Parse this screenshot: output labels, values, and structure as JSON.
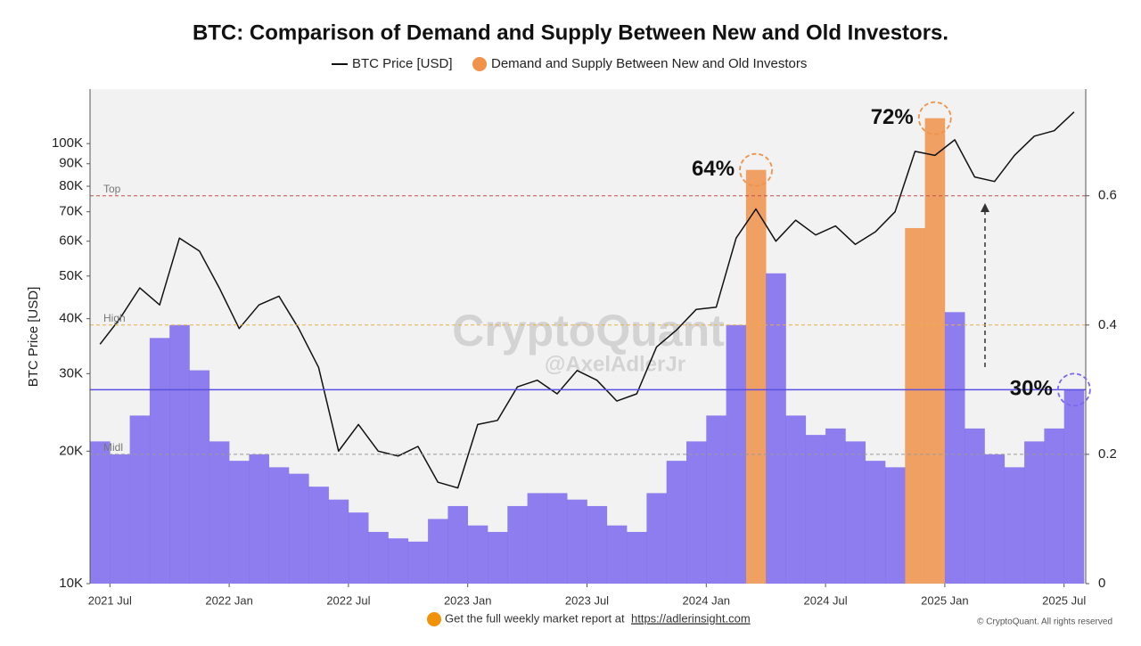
{
  "chart_data": {
    "type": "combo",
    "title": "BTC: Comparison of Demand and Supply Between New and Old Investors.",
    "ylabel": "BTC Price [USD]",
    "log_y": true,
    "x": [
      "2021-06",
      "2021-07",
      "2021-08",
      "2021-09",
      "2021-10",
      "2021-11",
      "2021-12",
      "2022-01",
      "2022-02",
      "2022-03",
      "2022-04",
      "2022-05",
      "2022-06",
      "2022-07",
      "2022-08",
      "2022-09",
      "2022-10",
      "2022-11",
      "2022-12",
      "2023-01",
      "2023-02",
      "2023-03",
      "2023-04",
      "2023-05",
      "2023-06",
      "2023-07",
      "2023-08",
      "2023-09",
      "2023-10",
      "2023-11",
      "2023-12",
      "2024-01",
      "2024-02",
      "2024-03",
      "2024-04",
      "2024-05",
      "2024-06",
      "2024-07",
      "2024-08",
      "2024-09",
      "2024-10",
      "2024-11",
      "2024-12",
      "2025-01",
      "2025-02",
      "2025-03",
      "2025-04",
      "2025-05",
      "2025-06",
      "2025-07"
    ],
    "series": [
      {
        "name": "BTC Price [USD]",
        "type": "line",
        "color": "#111111",
        "values": [
          35000,
          40000,
          47000,
          43000,
          61000,
          57000,
          47000,
          38000,
          43000,
          45000,
          38000,
          31000,
          20000,
          23000,
          20000,
          19500,
          20500,
          17000,
          16500,
          23000,
          23500,
          28000,
          29000,
          27000,
          30500,
          29000,
          26000,
          27000,
          34500,
          37700,
          42000,
          42500,
          61000,
          71000,
          60000,
          67000,
          62000,
          65000,
          59000,
          63000,
          70000,
          96000,
          94000,
          102000,
          84000,
          82000,
          94000,
          104000,
          107000,
          118000
        ]
      },
      {
        "name": "Demand and Supply Between New and Old Investors",
        "type": "bar",
        "axis": "y2",
        "color": "#f0924a",
        "values": [
          0.22,
          0.2,
          0.26,
          0.38,
          0.4,
          0.33,
          0.22,
          0.19,
          0.2,
          0.18,
          0.17,
          0.15,
          0.13,
          0.11,
          0.08,
          0.07,
          0.065,
          0.1,
          0.12,
          0.09,
          0.08,
          0.12,
          0.14,
          0.14,
          0.13,
          0.12,
          0.09,
          0.08,
          0.14,
          0.19,
          0.22,
          0.26,
          0.4,
          0.64,
          0.48,
          0.26,
          0.23,
          0.24,
          0.22,
          0.19,
          0.18,
          0.55,
          0.72,
          0.42,
          0.24,
          0.2,
          0.18,
          0.22,
          0.24,
          0.3
        ],
        "bar_colors": [
          "#7b68ee",
          "#7b68ee",
          "#7b68ee",
          "#7b68ee",
          "#7b68ee",
          "#7b68ee",
          "#7b68ee",
          "#7b68ee",
          "#7b68ee",
          "#7b68ee",
          "#7b68ee",
          "#7b68ee",
          "#7b68ee",
          "#7b68ee",
          "#7b68ee",
          "#7b68ee",
          "#7b68ee",
          "#7b68ee",
          "#7b68ee",
          "#7b68ee",
          "#7b68ee",
          "#7b68ee",
          "#7b68ee",
          "#7b68ee",
          "#7b68ee",
          "#7b68ee",
          "#7b68ee",
          "#7b68ee",
          "#7b68ee",
          "#7b68ee",
          "#7b68ee",
          "#7b68ee",
          "#7b68ee",
          "#f0924a",
          "#7b68ee",
          "#7b68ee",
          "#7b68ee",
          "#7b68ee",
          "#7b68ee",
          "#7b68ee",
          "#7b68ee",
          "#f0924a",
          "#f0924a",
          "#7b68ee",
          "#7b68ee",
          "#7b68ee",
          "#7b68ee",
          "#7b68ee",
          "#7b68ee",
          "#7b68ee"
        ]
      }
    ],
    "ylim": [
      10000,
      133000
    ],
    "yticks": [
      {
        "value": 10000,
        "label": "10K"
      },
      {
        "value": 20000,
        "label": "20K"
      },
      {
        "value": 30000,
        "label": "30K"
      },
      {
        "value": 40000,
        "label": "40K"
      },
      {
        "value": 50000,
        "label": "50K"
      },
      {
        "value": 60000,
        "label": "60K"
      },
      {
        "value": 70000,
        "label": "70K"
      },
      {
        "value": 80000,
        "label": "80K"
      },
      {
        "value": 90000,
        "label": "90K"
      },
      {
        "value": 100000,
        "label": "100K"
      }
    ],
    "y2lim": [
      0,
      0.765
    ],
    "y2ticks": [
      0,
      0.2,
      0.4,
      0.6
    ],
    "xticks": [
      {
        "value": "2021-07",
        "label": "2021 Jul"
      },
      {
        "value": "2022-01",
        "label": "2022 Jan"
      },
      {
        "value": "2022-07",
        "label": "2022 Jul"
      },
      {
        "value": "2023-01",
        "label": "2023 Jan"
      },
      {
        "value": "2023-07",
        "label": "2023 Jul"
      },
      {
        "value": "2024-01",
        "label": "2024 Jan"
      },
      {
        "value": "2024-07",
        "label": "2024 Jul"
      },
      {
        "value": "2025-01",
        "label": "2025 Jan"
      },
      {
        "value": "2025-07",
        "label": "2025 Jul"
      }
    ],
    "reference_lines": [
      {
        "label": "Top",
        "value": 0.6,
        "color": "#c0504d"
      },
      {
        "label": "High",
        "value": 0.4,
        "color": "#e8b04a"
      },
      {
        "label": "Midl",
        "value": 0.2,
        "color": "#9a9a9a"
      }
    ],
    "highlight_line": {
      "value": 0.3,
      "color": "#5b4fe0"
    },
    "annotations": [
      {
        "text": "64%",
        "x": "2024-03",
        "value": 0.64,
        "color": "#f0924a"
      },
      {
        "text": "72%",
        "x": "2024-12",
        "value": 0.72,
        "color": "#f0924a"
      },
      {
        "text": "30%",
        "x": "2025-07",
        "value": 0.3,
        "color": "#7b68ee"
      }
    ]
  },
  "watermark": {
    "brand": "CryptoQuant",
    "author": "@AxelAdlerJr"
  },
  "footer": {
    "text": "Get the full weekly market report at",
    "link": "https://adlerinsight.com",
    "copyright": "© CryptoQuant. All rights reserved"
  }
}
